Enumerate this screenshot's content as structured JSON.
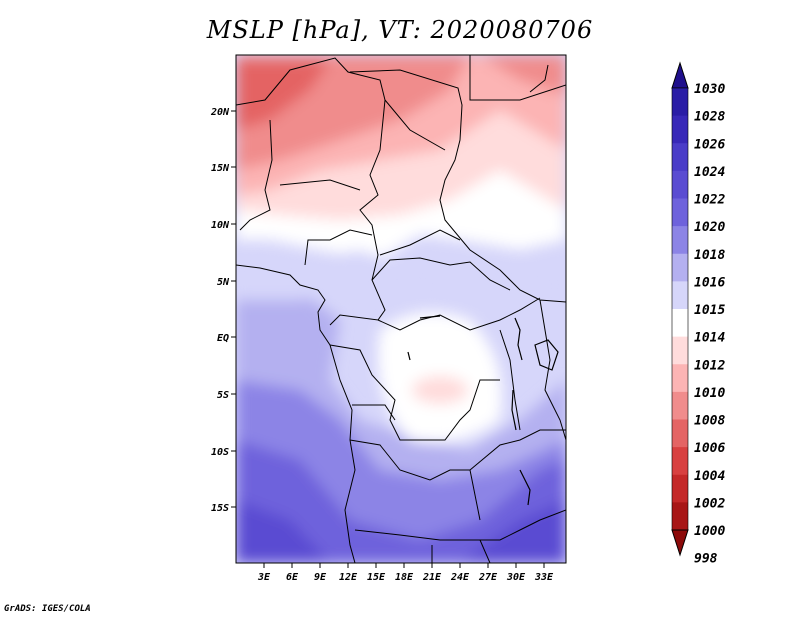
{
  "title": "MSLP [hPa], VT: 2020080706",
  "credit": "GrADS: IGES/COLA",
  "map": {
    "variable": "MSLP",
    "unit": "hPa",
    "valid_time": "2020080706",
    "lat_labels": [
      "20N",
      "15N",
      "10N",
      "5N",
      "EQ",
      "5S",
      "10S",
      "15S"
    ],
    "lon_labels": [
      "3E",
      "6E",
      "9E",
      "12E",
      "15E",
      "18E",
      "21E",
      "24E",
      "27E",
      "30E",
      "33E"
    ]
  },
  "colorbar": {
    "levels": [
      "1030",
      "1028",
      "1026",
      "1024",
      "1022",
      "1020",
      "1018",
      "1016",
      "1015",
      "1014",
      "1012",
      "1010",
      "1008",
      "1006",
      "1004",
      "1002",
      "1000",
      "998"
    ],
    "colors": [
      "#1f0f8c",
      "#2a1da6",
      "#3828b8",
      "#4a3cc8",
      "#5a4cd2",
      "#6e62dc",
      "#8c84e6",
      "#b4b0f0",
      "#d6d6fa",
      "#ffffff",
      "#ffdcdc",
      "#fcb4b4",
      "#f08c8c",
      "#e46464",
      "#d84040",
      "#c42828",
      "#a81616",
      "#8c0a0a"
    ]
  }
}
